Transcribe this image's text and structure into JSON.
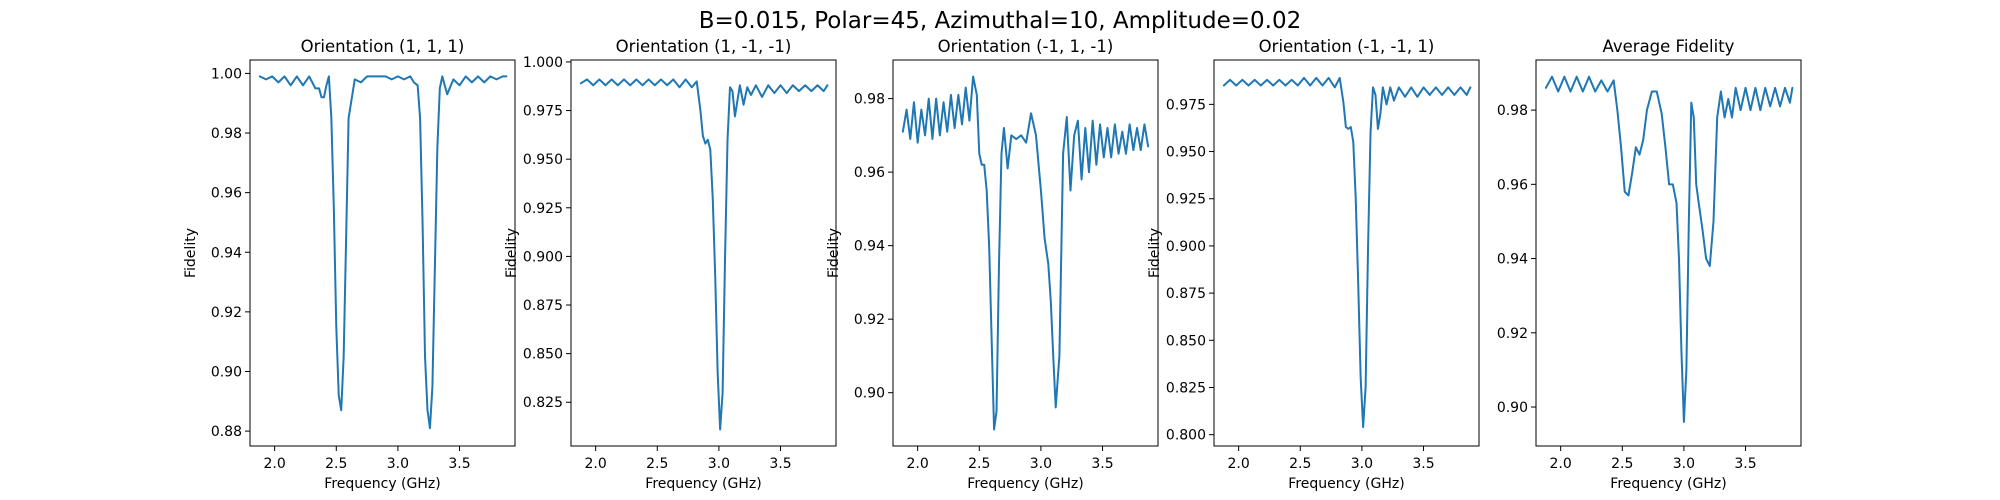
{
  "figure": {
    "suptitle": "B=0.015, Polar=45, Azimuthal=10, Amplitude=0.02",
    "line_color": "#1f77b4"
  },
  "chart_data": [
    {
      "type": "line",
      "title": "Orientation (1, 1, 1)",
      "xlabel": "Frequency (GHz)",
      "ylabel": "Fidelity",
      "xlim": [
        1.8,
        3.95
      ],
      "ylim": [
        0.875,
        1.0045
      ],
      "xticks": [
        2.0,
        2.5,
        3.0,
        3.5
      ],
      "xtick_labels": [
        "2.0",
        "2.5",
        "3.0",
        "3.5"
      ],
      "yticks": [
        0.88,
        0.9,
        0.92,
        0.94,
        0.96,
        0.98,
        1.0
      ],
      "ytick_labels": [
        "0.88",
        "0.90",
        "0.92",
        "0.94",
        "0.96",
        "0.98",
        "1.00"
      ],
      "series": [
        {
          "x": [
            1.88,
            1.93,
            1.98,
            2.03,
            2.08,
            2.13,
            2.18,
            2.23,
            2.28,
            2.33,
            2.36,
            2.38,
            2.4,
            2.42,
            2.44,
            2.46,
            2.48,
            2.5,
            2.52,
            2.54,
            2.56,
            2.58,
            2.6,
            2.65,
            2.7,
            2.75,
            2.8,
            2.85,
            2.9,
            2.95,
            3.0,
            3.05,
            3.1,
            3.13,
            3.16,
            3.18,
            3.2,
            3.22,
            3.24,
            3.26,
            3.28,
            3.3,
            3.32,
            3.34,
            3.36,
            3.38,
            3.4,
            3.45,
            3.5,
            3.55,
            3.6,
            3.65,
            3.7,
            3.75,
            3.8,
            3.85,
            3.88
          ],
          "y": [
            0.999,
            0.998,
            0.999,
            0.997,
            0.999,
            0.996,
            0.999,
            0.996,
            0.999,
            0.995,
            0.995,
            0.992,
            0.992,
            0.996,
            0.999,
            0.985,
            0.955,
            0.915,
            0.892,
            0.887,
            0.905,
            0.945,
            0.985,
            0.998,
            0.997,
            0.999,
            0.999,
            0.999,
            0.999,
            0.998,
            0.999,
            0.998,
            0.999,
            0.997,
            0.996,
            0.985,
            0.95,
            0.905,
            0.887,
            0.881,
            0.895,
            0.935,
            0.975,
            0.995,
            0.999,
            0.996,
            0.993,
            0.998,
            0.996,
            0.999,
            0.997,
            0.999,
            0.997,
            0.999,
            0.998,
            0.999,
            0.999
          ]
        }
      ]
    },
    {
      "type": "line",
      "title": "Orientation (1, -1, -1)",
      "xlabel": "Frequency (GHz)",
      "ylabel": "Fidelity",
      "xlim": [
        1.8,
        3.95
      ],
      "ylim": [
        0.8025,
        1.001
      ],
      "xticks": [
        2.0,
        2.5,
        3.0,
        3.5
      ],
      "xtick_labels": [
        "2.0",
        "2.5",
        "3.0",
        "3.5"
      ],
      "yticks": [
        0.825,
        0.85,
        0.875,
        0.9,
        0.925,
        0.95,
        0.975,
        1.0
      ],
      "ytick_labels": [
        "0.825",
        "0.850",
        "0.875",
        "0.900",
        "0.925",
        "0.950",
        "0.975",
        "1.000"
      ],
      "series": [
        {
          "x": [
            1.88,
            1.93,
            1.98,
            2.03,
            2.08,
            2.13,
            2.18,
            2.23,
            2.28,
            2.33,
            2.38,
            2.43,
            2.48,
            2.53,
            2.58,
            2.63,
            2.68,
            2.73,
            2.78,
            2.82,
            2.85,
            2.87,
            2.89,
            2.91,
            2.93,
            2.95,
            2.97,
            2.99,
            3.01,
            3.03,
            3.05,
            3.07,
            3.09,
            3.11,
            3.13,
            3.15,
            3.17,
            3.2,
            3.23,
            3.26,
            3.3,
            3.35,
            3.4,
            3.45,
            3.5,
            3.55,
            3.6,
            3.65,
            3.7,
            3.75,
            3.8,
            3.85,
            3.88
          ],
          "y": [
            0.989,
            0.991,
            0.988,
            0.991,
            0.988,
            0.991,
            0.988,
            0.991,
            0.988,
            0.991,
            0.988,
            0.991,
            0.988,
            0.991,
            0.988,
            0.991,
            0.987,
            0.991,
            0.987,
            0.99,
            0.975,
            0.962,
            0.958,
            0.96,
            0.955,
            0.93,
            0.89,
            0.84,
            0.811,
            0.83,
            0.9,
            0.96,
            0.987,
            0.985,
            0.972,
            0.98,
            0.988,
            0.978,
            0.987,
            0.983,
            0.988,
            0.982,
            0.988,
            0.984,
            0.988,
            0.984,
            0.988,
            0.985,
            0.988,
            0.985,
            0.988,
            0.985,
            0.988
          ]
        }
      ]
    },
    {
      "type": "line",
      "title": "Orientation (-1, 1, -1)",
      "xlabel": "Frequency (GHz)",
      "ylabel": "Fidelity",
      "xlim": [
        1.8,
        3.95
      ],
      "ylim": [
        0.8855,
        0.9905
      ],
      "xticks": [
        2.0,
        2.5,
        3.0,
        3.5
      ],
      "xtick_labels": [
        "2.0",
        "2.5",
        "3.0",
        "3.5"
      ],
      "yticks": [
        0.9,
        0.92,
        0.94,
        0.96,
        0.98
      ],
      "ytick_labels": [
        "0.90",
        "0.92",
        "0.94",
        "0.96",
        "0.98"
      ],
      "series": [
        {
          "x": [
            1.88,
            1.91,
            1.94,
            1.97,
            2.0,
            2.03,
            2.06,
            2.09,
            2.12,
            2.15,
            2.18,
            2.21,
            2.24,
            2.27,
            2.3,
            2.33,
            2.36,
            2.39,
            2.42,
            2.45,
            2.48,
            2.5,
            2.52,
            2.54,
            2.56,
            2.58,
            2.6,
            2.62,
            2.64,
            2.66,
            2.68,
            2.7,
            2.73,
            2.76,
            2.8,
            2.84,
            2.88,
            2.92,
            2.96,
            3.0,
            3.03,
            3.06,
            3.08,
            3.1,
            3.12,
            3.15,
            3.18,
            3.21,
            3.24,
            3.27,
            3.3,
            3.33,
            3.36,
            3.39,
            3.42,
            3.45,
            3.48,
            3.51,
            3.54,
            3.57,
            3.6,
            3.63,
            3.66,
            3.69,
            3.72,
            3.75,
            3.78,
            3.81,
            3.84,
            3.87
          ],
          "y": [
            0.971,
            0.977,
            0.969,
            0.979,
            0.968,
            0.977,
            0.97,
            0.98,
            0.969,
            0.98,
            0.97,
            0.979,
            0.971,
            0.981,
            0.972,
            0.981,
            0.973,
            0.983,
            0.974,
            0.986,
            0.981,
            0.965,
            0.962,
            0.962,
            0.955,
            0.94,
            0.915,
            0.89,
            0.895,
            0.935,
            0.965,
            0.972,
            0.961,
            0.97,
            0.969,
            0.97,
            0.968,
            0.976,
            0.97,
            0.955,
            0.942,
            0.935,
            0.925,
            0.91,
            0.896,
            0.91,
            0.965,
            0.975,
            0.955,
            0.97,
            0.974,
            0.958,
            0.972,
            0.96,
            0.974,
            0.962,
            0.973,
            0.964,
            0.972,
            0.964,
            0.973,
            0.965,
            0.971,
            0.965,
            0.973,
            0.966,
            0.972,
            0.966,
            0.973,
            0.967
          ]
        }
      ]
    },
    {
      "type": "line",
      "title": "Orientation (-1, -1, 1)",
      "xlabel": "Frequency (GHz)",
      "ylabel": "Fidelity",
      "xlim": [
        1.8,
        3.95
      ],
      "ylim": [
        0.794,
        0.9985
      ],
      "xticks": [
        2.0,
        2.5,
        3.0,
        3.5
      ],
      "xtick_labels": [
        "2.0",
        "2.5",
        "3.0",
        "3.5"
      ],
      "yticks": [
        0.8,
        0.825,
        0.85,
        0.875,
        0.9,
        0.925,
        0.95,
        0.975
      ],
      "ytick_labels": [
        "0.800",
        "0.825",
        "0.850",
        "0.875",
        "0.900",
        "0.925",
        "0.950",
        "0.975"
      ],
      "series": [
        {
          "x": [
            1.88,
            1.93,
            1.98,
            2.03,
            2.08,
            2.13,
            2.18,
            2.23,
            2.28,
            2.33,
            2.38,
            2.43,
            2.48,
            2.53,
            2.58,
            2.63,
            2.68,
            2.73,
            2.78,
            2.82,
            2.85,
            2.87,
            2.89,
            2.91,
            2.93,
            2.95,
            2.97,
            2.99,
            3.01,
            3.03,
            3.05,
            3.07,
            3.09,
            3.11,
            3.13,
            3.15,
            3.17,
            3.2,
            3.23,
            3.26,
            3.3,
            3.35,
            3.4,
            3.45,
            3.5,
            3.55,
            3.6,
            3.65,
            3.7,
            3.75,
            3.8,
            3.85,
            3.88
          ],
          "y": [
            0.985,
            0.988,
            0.985,
            0.988,
            0.985,
            0.988,
            0.985,
            0.988,
            0.985,
            0.988,
            0.985,
            0.988,
            0.985,
            0.989,
            0.985,
            0.989,
            0.985,
            0.989,
            0.984,
            0.989,
            0.976,
            0.963,
            0.962,
            0.963,
            0.955,
            0.925,
            0.88,
            0.83,
            0.804,
            0.825,
            0.9,
            0.96,
            0.984,
            0.98,
            0.962,
            0.97,
            0.984,
            0.975,
            0.984,
            0.977,
            0.984,
            0.979,
            0.984,
            0.979,
            0.984,
            0.98,
            0.984,
            0.98,
            0.984,
            0.98,
            0.984,
            0.98,
            0.984
          ]
        }
      ]
    },
    {
      "type": "line",
      "title": "Average Fidelity",
      "xlabel": "Frequency (GHz)",
      "ylabel": "",
      "xlim": [
        1.8,
        3.95
      ],
      "ylim": [
        0.8895,
        0.9935
      ],
      "xticks": [
        2.0,
        2.5,
        3.0,
        3.5
      ],
      "xtick_labels": [
        "2.0",
        "2.5",
        "3.0",
        "3.5"
      ],
      "yticks": [
        0.9,
        0.92,
        0.94,
        0.96,
        0.98
      ],
      "ytick_labels": [
        "0.90",
        "0.92",
        "0.94",
        "0.96",
        "0.98"
      ],
      "series": [
        {
          "x": [
            1.88,
            1.93,
            1.98,
            2.03,
            2.08,
            2.13,
            2.18,
            2.23,
            2.28,
            2.33,
            2.38,
            2.43,
            2.46,
            2.49,
            2.52,
            2.55,
            2.58,
            2.61,
            2.64,
            2.67,
            2.7,
            2.74,
            2.78,
            2.82,
            2.85,
            2.88,
            2.91,
            2.94,
            2.96,
            2.98,
            3.0,
            3.02,
            3.04,
            3.06,
            3.08,
            3.1,
            3.12,
            3.15,
            3.18,
            3.21,
            3.24,
            3.27,
            3.3,
            3.33,
            3.36,
            3.39,
            3.42,
            3.46,
            3.5,
            3.54,
            3.58,
            3.62,
            3.66,
            3.7,
            3.74,
            3.78,
            3.82,
            3.86,
            3.88
          ],
          "y": [
            0.986,
            0.989,
            0.985,
            0.989,
            0.985,
            0.989,
            0.985,
            0.989,
            0.985,
            0.988,
            0.985,
            0.988,
            0.98,
            0.97,
            0.958,
            0.957,
            0.963,
            0.97,
            0.968,
            0.972,
            0.98,
            0.985,
            0.985,
            0.979,
            0.97,
            0.96,
            0.96,
            0.955,
            0.94,
            0.915,
            0.896,
            0.91,
            0.95,
            0.982,
            0.978,
            0.96,
            0.955,
            0.948,
            0.94,
            0.938,
            0.95,
            0.978,
            0.985,
            0.978,
            0.983,
            0.978,
            0.986,
            0.98,
            0.986,
            0.98,
            0.986,
            0.98,
            0.986,
            0.981,
            0.986,
            0.981,
            0.986,
            0.982,
            0.986
          ]
        }
      ]
    }
  ]
}
